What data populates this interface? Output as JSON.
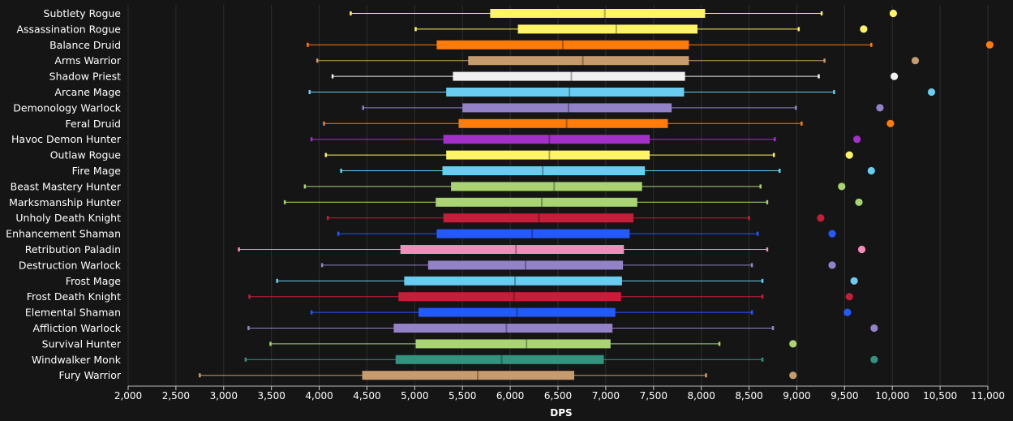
{
  "chart_data": {
    "type": "box",
    "xlabel": "DPS",
    "xlim": [
      2000,
      11000
    ],
    "x_ticks": [
      "2,000",
      "2,500",
      "3,000",
      "3,500",
      "4,000",
      "4,500",
      "5,000",
      "5,500",
      "6,000",
      "6,500",
      "7,000",
      "7,500",
      "8,000",
      "8,500",
      "9,000",
      "9,500",
      "10,000",
      "10,500",
      "11,000"
    ],
    "grid": true,
    "series": [
      {
        "name": "Subtlety Rogue",
        "color": "#fff468",
        "min": 4330,
        "q1": 5790,
        "median": 6990,
        "q3": 8040,
        "max": 9260,
        "outlier": 10010
      },
      {
        "name": "Assassination Rogue",
        "color": "#fff468",
        "min": 5010,
        "q1": 6080,
        "median": 7110,
        "q3": 7960,
        "max": 9020,
        "outlier": 9700
      },
      {
        "name": "Balance Druid",
        "color": "#ff7c0a",
        "min": 3880,
        "q1": 5230,
        "median": 6550,
        "q3": 7870,
        "max": 9780,
        "outlier": 11020
      },
      {
        "name": "Arms Warrior",
        "color": "#c69b6d",
        "min": 3980,
        "q1": 5560,
        "median": 6760,
        "q3": 7870,
        "max": 9290,
        "outlier": 10240
      },
      {
        "name": "Shadow Priest",
        "color": "#f0f0f0",
        "min": 4140,
        "q1": 5400,
        "median": 6640,
        "q3": 7830,
        "max": 9230,
        "outlier": 10020
      },
      {
        "name": "Arcane Mage",
        "color": "#69ccf0",
        "min": 3900,
        "q1": 5330,
        "median": 6620,
        "q3": 7820,
        "max": 9390,
        "outlier": 10410
      },
      {
        "name": "Demonology Warlock",
        "color": "#9482c9",
        "min": 4460,
        "q1": 5500,
        "median": 6610,
        "q3": 7690,
        "max": 8990,
        "outlier": 9870
      },
      {
        "name": "Feral Druid",
        "color": "#ff7c0a",
        "min": 4050,
        "q1": 5460,
        "median": 6590,
        "q3": 7650,
        "max": 9050,
        "outlier": 9980
      },
      {
        "name": "Havoc Demon Hunter",
        "color": "#a330c9",
        "min": 3920,
        "q1": 5300,
        "median": 6410,
        "q3": 7460,
        "max": 8770,
        "outlier": 9630
      },
      {
        "name": "Outlaw Rogue",
        "color": "#fff468",
        "min": 4070,
        "q1": 5330,
        "median": 6410,
        "q3": 7460,
        "max": 8760,
        "outlier": 9550
      },
      {
        "name": "Fire Mage",
        "color": "#69ccf0",
        "min": 4230,
        "q1": 5290,
        "median": 6340,
        "q3": 7410,
        "max": 8820,
        "outlier": 9780
      },
      {
        "name": "Beast Mastery Hunter",
        "color": "#aad372",
        "min": 3850,
        "q1": 5380,
        "median": 6460,
        "q3": 7380,
        "max": 8620,
        "outlier": 9470
      },
      {
        "name": "Marksmanship Hunter",
        "color": "#aad372",
        "min": 3640,
        "q1": 5220,
        "median": 6330,
        "q3": 7330,
        "max": 8690,
        "outlier": 9650
      },
      {
        "name": "Unholy Death Knight",
        "color": "#c41e3a",
        "min": 4090,
        "q1": 5300,
        "median": 6300,
        "q3": 7290,
        "max": 8500,
        "outlier": 9250
      },
      {
        "name": "Enhancement Shaman",
        "color": "#2359ff",
        "min": 4200,
        "q1": 5230,
        "median": 6230,
        "q3": 7250,
        "max": 8590,
        "outlier": 9370
      },
      {
        "name": "Retribution Paladin",
        "color": "#f48cba",
        "min": 3160,
        "q1": 4850,
        "median": 6060,
        "q3": 7190,
        "max": 8690,
        "outlier": 9680
      },
      {
        "name": "Destruction Warlock",
        "color": "#9482c9",
        "min": 4030,
        "q1": 5140,
        "median": 6160,
        "q3": 7180,
        "max": 8530,
        "outlier": 9370
      },
      {
        "name": "Frost Mage",
        "color": "#69ccf0",
        "min": 3560,
        "q1": 4890,
        "median": 6050,
        "q3": 7170,
        "max": 8640,
        "outlier": 9600
      },
      {
        "name": "Frost Death Knight",
        "color": "#c41e3a",
        "min": 3270,
        "q1": 4830,
        "median": 6040,
        "q3": 7160,
        "max": 8640,
        "outlier": 9550
      },
      {
        "name": "Elemental Shaman",
        "color": "#2359ff",
        "min": 3920,
        "q1": 5040,
        "median": 6070,
        "q3": 7100,
        "max": 8530,
        "outlier": 9530
      },
      {
        "name": "Affliction Warlock",
        "color": "#9482c9",
        "min": 3260,
        "q1": 4780,
        "median": 5960,
        "q3": 7070,
        "max": 8750,
        "outlier": 9810
      },
      {
        "name": "Survival Hunter",
        "color": "#aad372",
        "min": 3490,
        "q1": 5010,
        "median": 6170,
        "q3": 7050,
        "max": 8190,
        "outlier": 8960
      },
      {
        "name": "Windwalker Monk",
        "color": "#33937f",
        "min": 3230,
        "q1": 4800,
        "median": 5910,
        "q3": 6980,
        "max": 8640,
        "outlier": 9810
      },
      {
        "name": "Fury Warrior",
        "color": "#c69b6d",
        "min": 2750,
        "q1": 4450,
        "median": 5660,
        "q3": 6670,
        "max": 8050,
        "outlier": 8960
      }
    ]
  }
}
